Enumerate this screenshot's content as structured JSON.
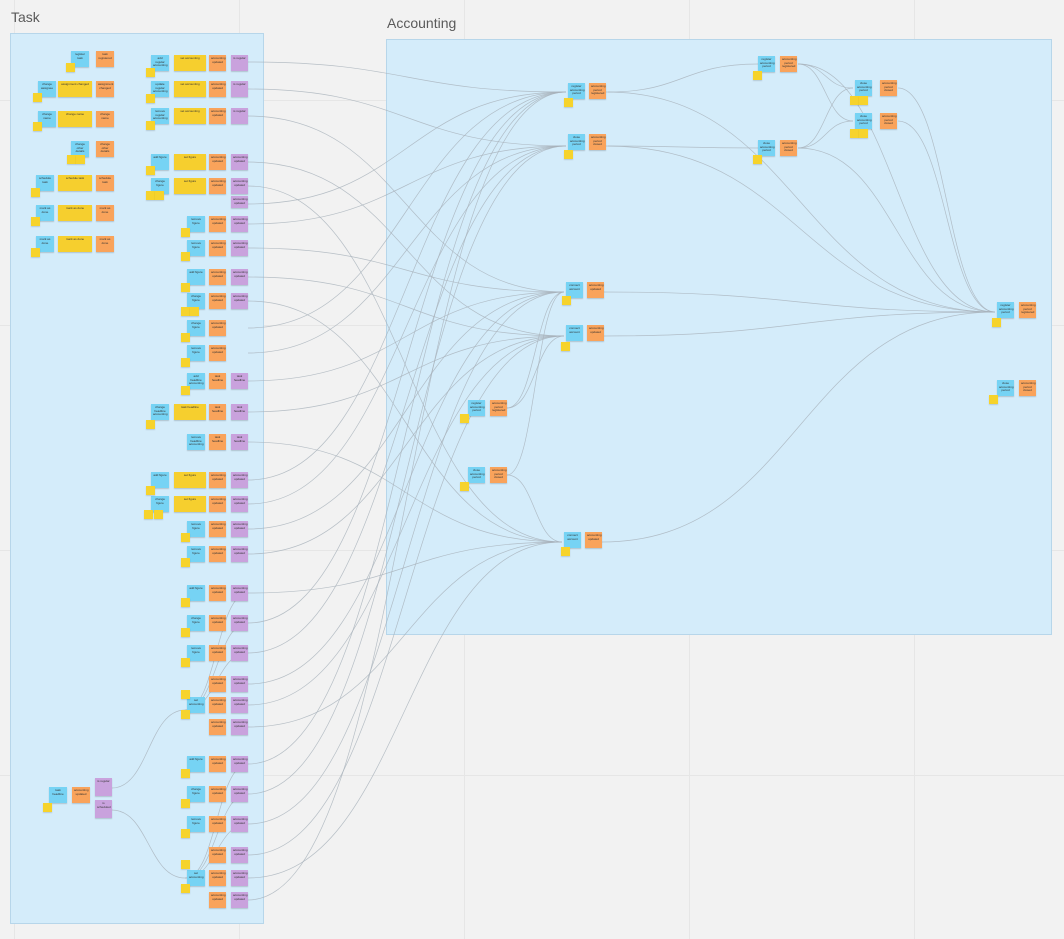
{
  "frames": {
    "task": "Task",
    "accounting": "Accounting"
  },
  "colors": {
    "blue": "#76d3f4",
    "orange": "#f9a35b",
    "purple": "#c9a2dd",
    "yellow": "#f6cf2e",
    "frame": "#d4ecfa",
    "connector": "#a8b2ba"
  },
  "note_labels": {
    "register_task": "register task",
    "task_registered": "task registered",
    "change_assignee": "change assignee",
    "change_name": "change name",
    "change_other_details": "change other details",
    "schedule_task": "schedule task",
    "mark_done": "mark as done",
    "add_regular_accounting": "add regular accounting",
    "update_regular_accounting": "update regular accounting",
    "remove_regular_accounting": "remove regular accounting",
    "add_headline_accounting": "add headline accounting",
    "change_headline_accounting": "change headline accounting",
    "remove_headline_accounting": "remove headline accounting",
    "add_figure": "add figure",
    "change_figure": "change figure",
    "remove_figure": "remove figure",
    "set_figure": "set figure",
    "set_accounting": "set accounting",
    "task_headline": "task headline",
    "accounting_updated": "accounting updated",
    "assignment_changed": "assignment changed",
    "is_regular": "is regular",
    "is_scheduled": "is scheduled",
    "connect_account": "connect account",
    "register_accounting_period": "register accounting period",
    "accounting_period_registered": "accounting period registered",
    "close_accounting_period": "close accounting period",
    "accounting_period_closed": "accounting period closed"
  }
}
